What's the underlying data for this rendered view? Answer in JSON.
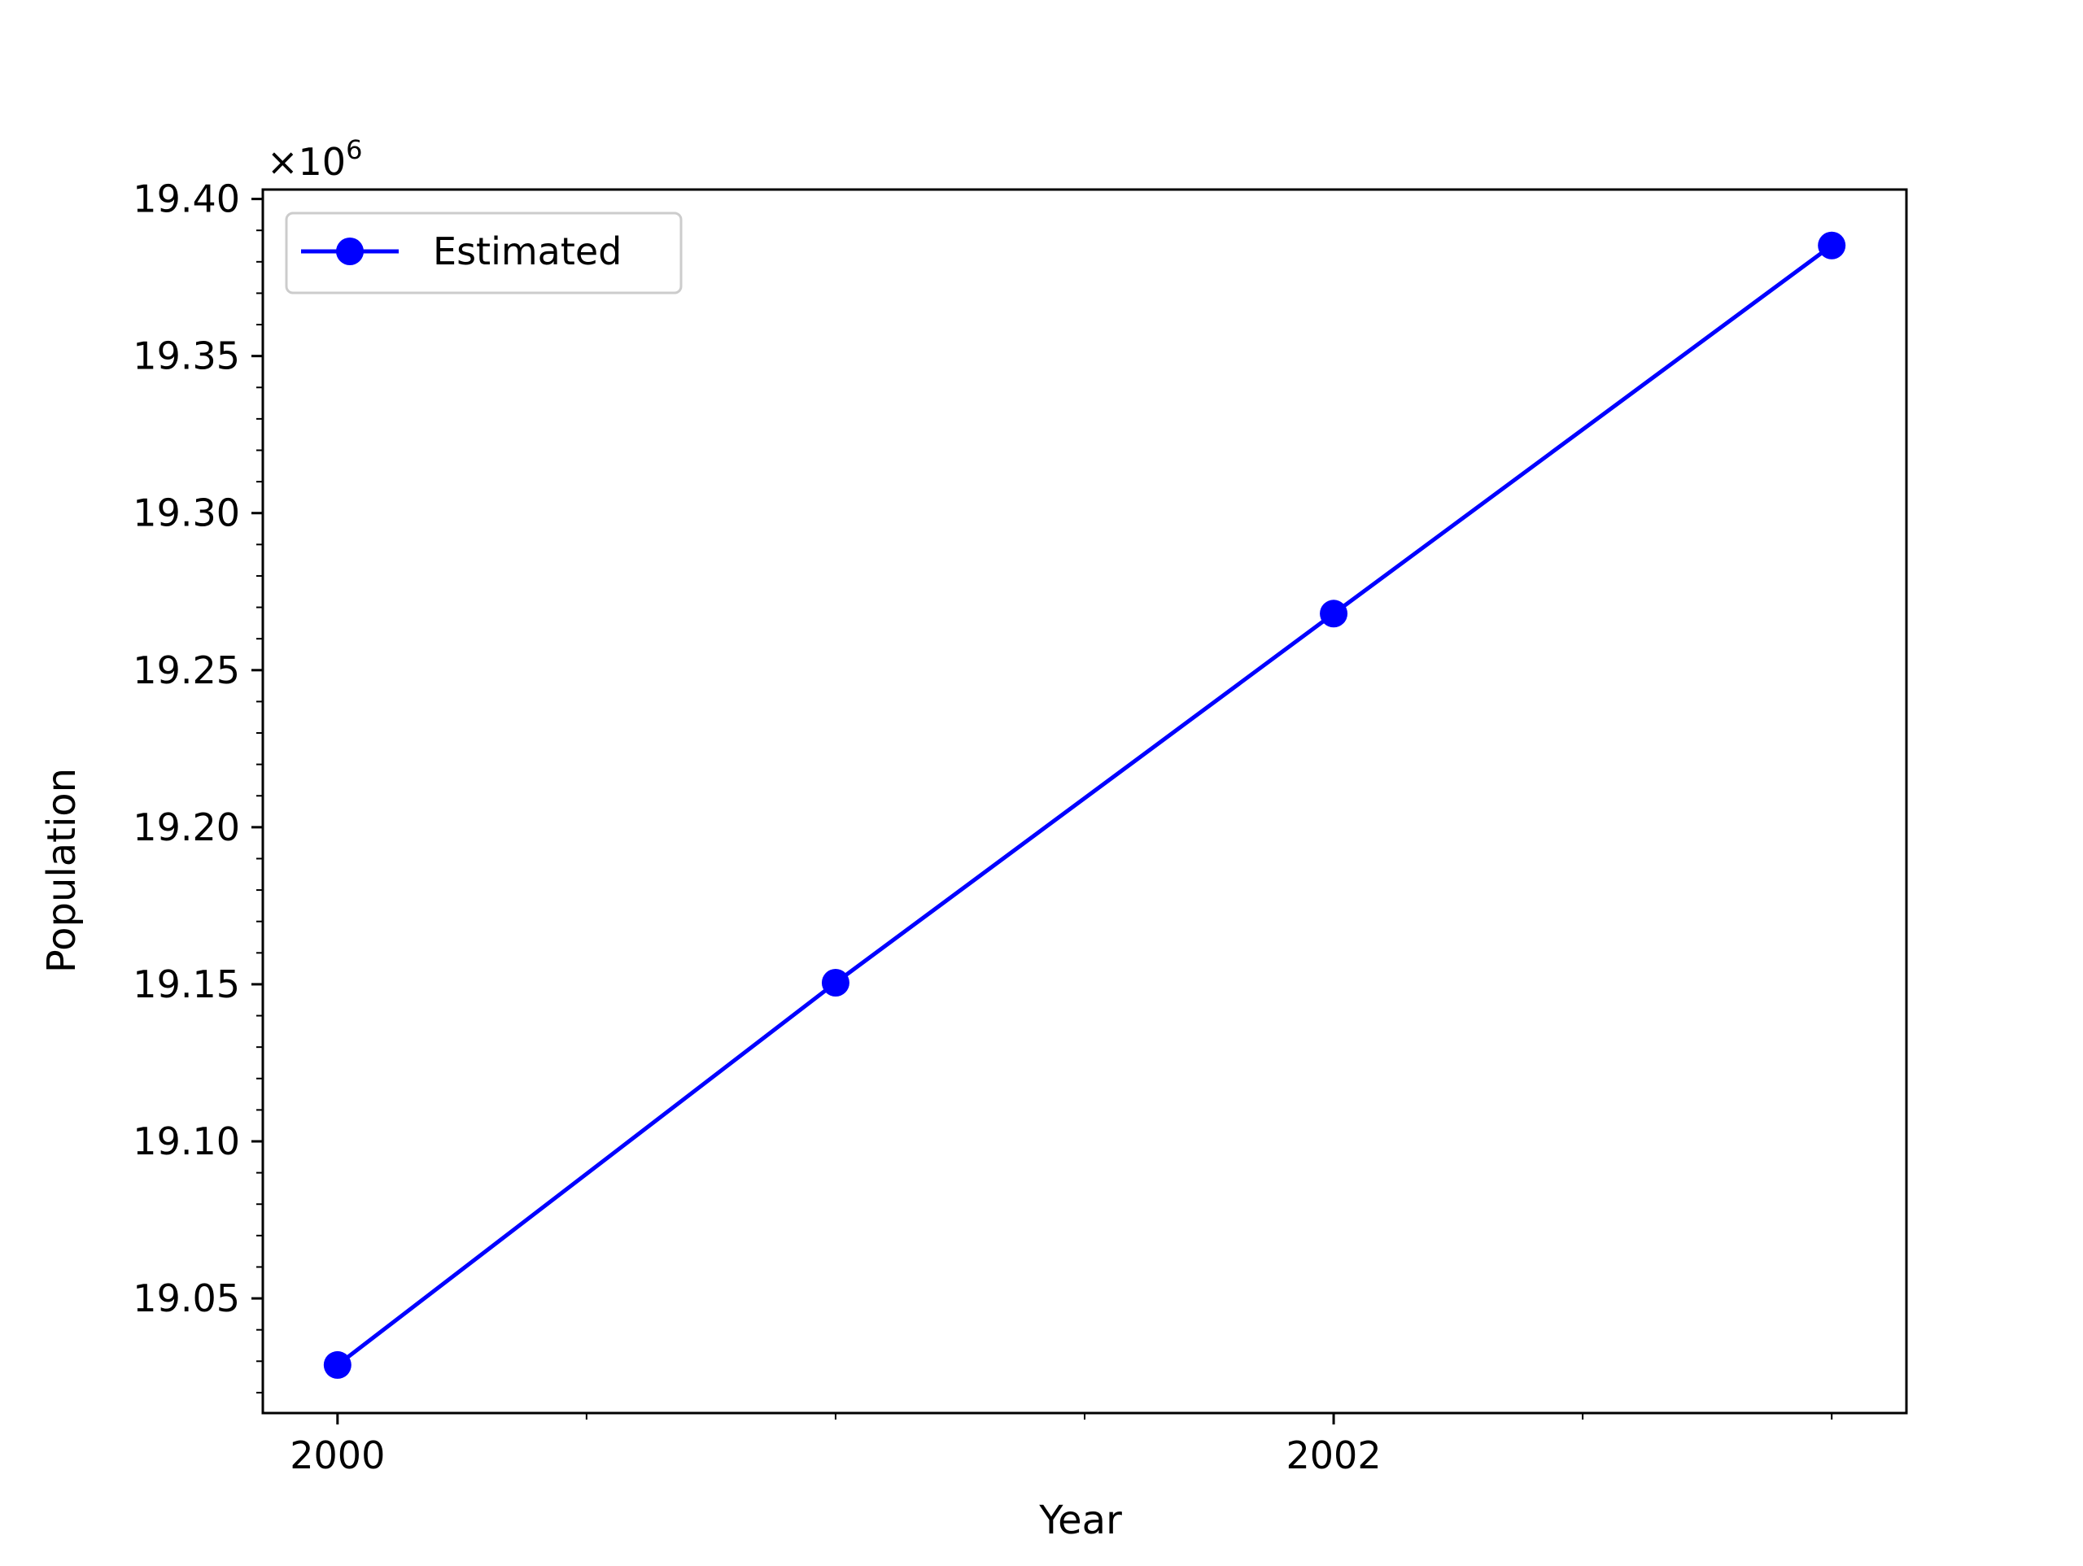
{
  "chart_data": {
    "type": "line",
    "title": "",
    "xlabel": "Year",
    "ylabel": "Population",
    "y_offset_text": "×10",
    "y_offset_exponent": "6",
    "y_multiplier": 1000000,
    "x": [
      2000,
      2001,
      2002,
      2003
    ],
    "series": [
      {
        "name": "Estimated",
        "values": [
          19028800,
          19150500,
          19268000,
          19385200
        ],
        "color": "#0000ff",
        "marker": "circle"
      }
    ],
    "xlim": [
      1999.85,
      2003.15
    ],
    "ylim": [
      19.0135,
      19.403
    ],
    "x_ticks": [
      2000,
      2002
    ],
    "x_tick_labels": [
      "2000",
      "2002"
    ],
    "x_minor_ticks": [
      2000.5,
      2001,
      2001.5,
      2002.5,
      2003
    ],
    "y_ticks": [
      19.05,
      19.1,
      19.15,
      19.2,
      19.25,
      19.3,
      19.35,
      19.4
    ],
    "y_tick_labels": [
      "19.05",
      "19.10",
      "19.15",
      "19.20",
      "19.25",
      "19.30",
      "19.35",
      "19.40"
    ],
    "y_minor_step": 0.01,
    "grid": false,
    "legend_position": "upper-left"
  }
}
